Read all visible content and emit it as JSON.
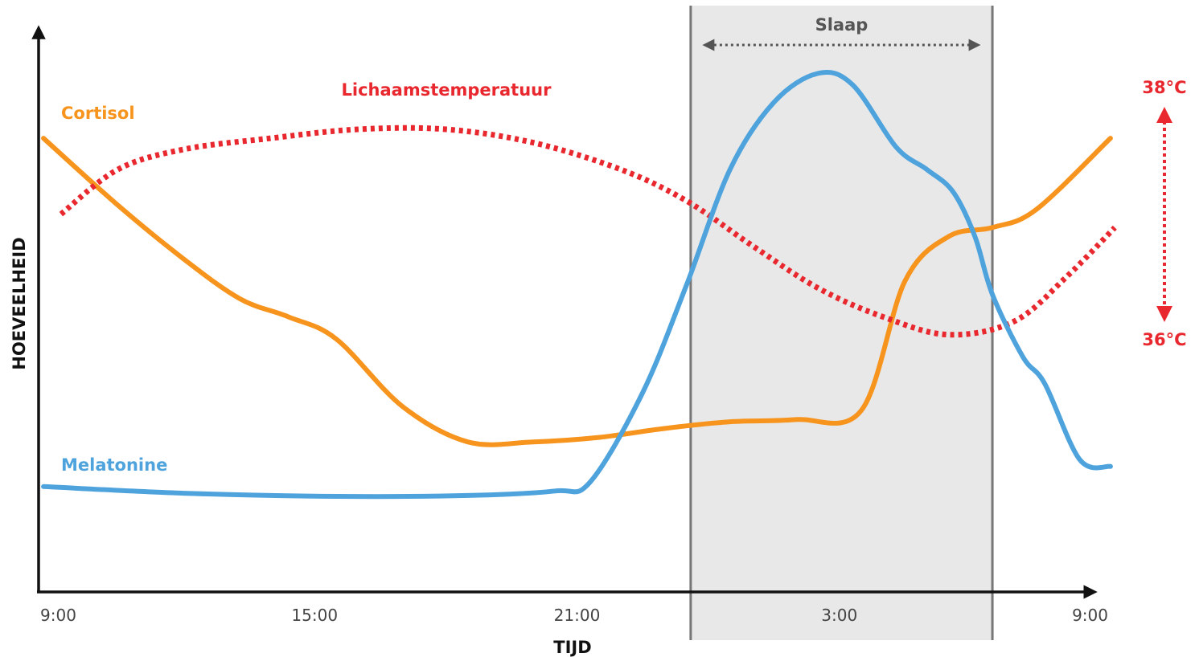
{
  "chart_data": {
    "type": "line",
    "xlabel": "TIJD",
    "ylabel": "HOEVEELHEID",
    "x_ticks": [
      {
        "label": "9:00",
        "hours": 0
      },
      {
        "label": "15:00",
        "hours": 6
      },
      {
        "label": "21:00",
        "hours": 12
      },
      {
        "label": "3:00",
        "hours": 18
      },
      {
        "label": "9:00",
        "hours": 24
      }
    ],
    "sleep_band": {
      "label": "Slaap",
      "start_hours": 14.6,
      "end_hours": 21.5
    },
    "y_range": [
      0,
      100
    ],
    "temperature_scale": {
      "top_label": "38°C",
      "bottom_label": "36°C"
    },
    "series": [
      {
        "name": "Cortisol",
        "color": "#f7941d",
        "style": "solid",
        "points": [
          [
            -0.2,
            82
          ],
          [
            1.5,
            67
          ],
          [
            3.0,
            55
          ],
          [
            4.3,
            46
          ],
          [
            5.4,
            42
          ],
          [
            6.5,
            37
          ],
          [
            8.0,
            22
          ],
          [
            9.5,
            14
          ],
          [
            11.0,
            14
          ],
          [
            12.5,
            15
          ],
          [
            14.0,
            17
          ],
          [
            15.5,
            18.5
          ],
          [
            17.0,
            19
          ],
          [
            18.5,
            21
          ],
          [
            19.5,
            50
          ],
          [
            20.5,
            60
          ],
          [
            21.5,
            62
          ],
          [
            22.5,
            66
          ],
          [
            24.2,
            82
          ]
        ]
      },
      {
        "name": "Lichaamstemperatuur",
        "color": "#e8282e",
        "style": "dotted",
        "points": [
          [
            0.2,
            65
          ],
          [
            1.5,
            75
          ],
          [
            3.0,
            79.5
          ],
          [
            5.0,
            82
          ],
          [
            7.0,
            84
          ],
          [
            9.0,
            84
          ],
          [
            11.0,
            81
          ],
          [
            13.0,
            75
          ],
          [
            14.5,
            68
          ],
          [
            16.0,
            58
          ],
          [
            17.5,
            48.5
          ],
          [
            19.0,
            42
          ],
          [
            20.5,
            38
          ],
          [
            22.0,
            41
          ],
          [
            23.2,
            51
          ],
          [
            24.3,
            62
          ]
        ]
      },
      {
        "name": "Melatonine",
        "color": "#4ea3dd",
        "style": "solid",
        "points": [
          [
            -0.2,
            4
          ],
          [
            3.0,
            2.5
          ],
          [
            6.5,
            1.8
          ],
          [
            9.5,
            2
          ],
          [
            11.5,
            3
          ],
          [
            12.3,
            5
          ],
          [
            13.5,
            25
          ],
          [
            14.5,
            49
          ],
          [
            15.5,
            75
          ],
          [
            16.5,
            90
          ],
          [
            17.5,
            96.5
          ],
          [
            18.3,
            94
          ],
          [
            19.3,
            80
          ],
          [
            20.0,
            75
          ],
          [
            20.6,
            70
          ],
          [
            21.1,
            60
          ],
          [
            21.5,
            47
          ],
          [
            22.2,
            33
          ],
          [
            22.7,
            27
          ],
          [
            23.5,
            10
          ],
          [
            24.2,
            8.5
          ]
        ]
      }
    ]
  }
}
